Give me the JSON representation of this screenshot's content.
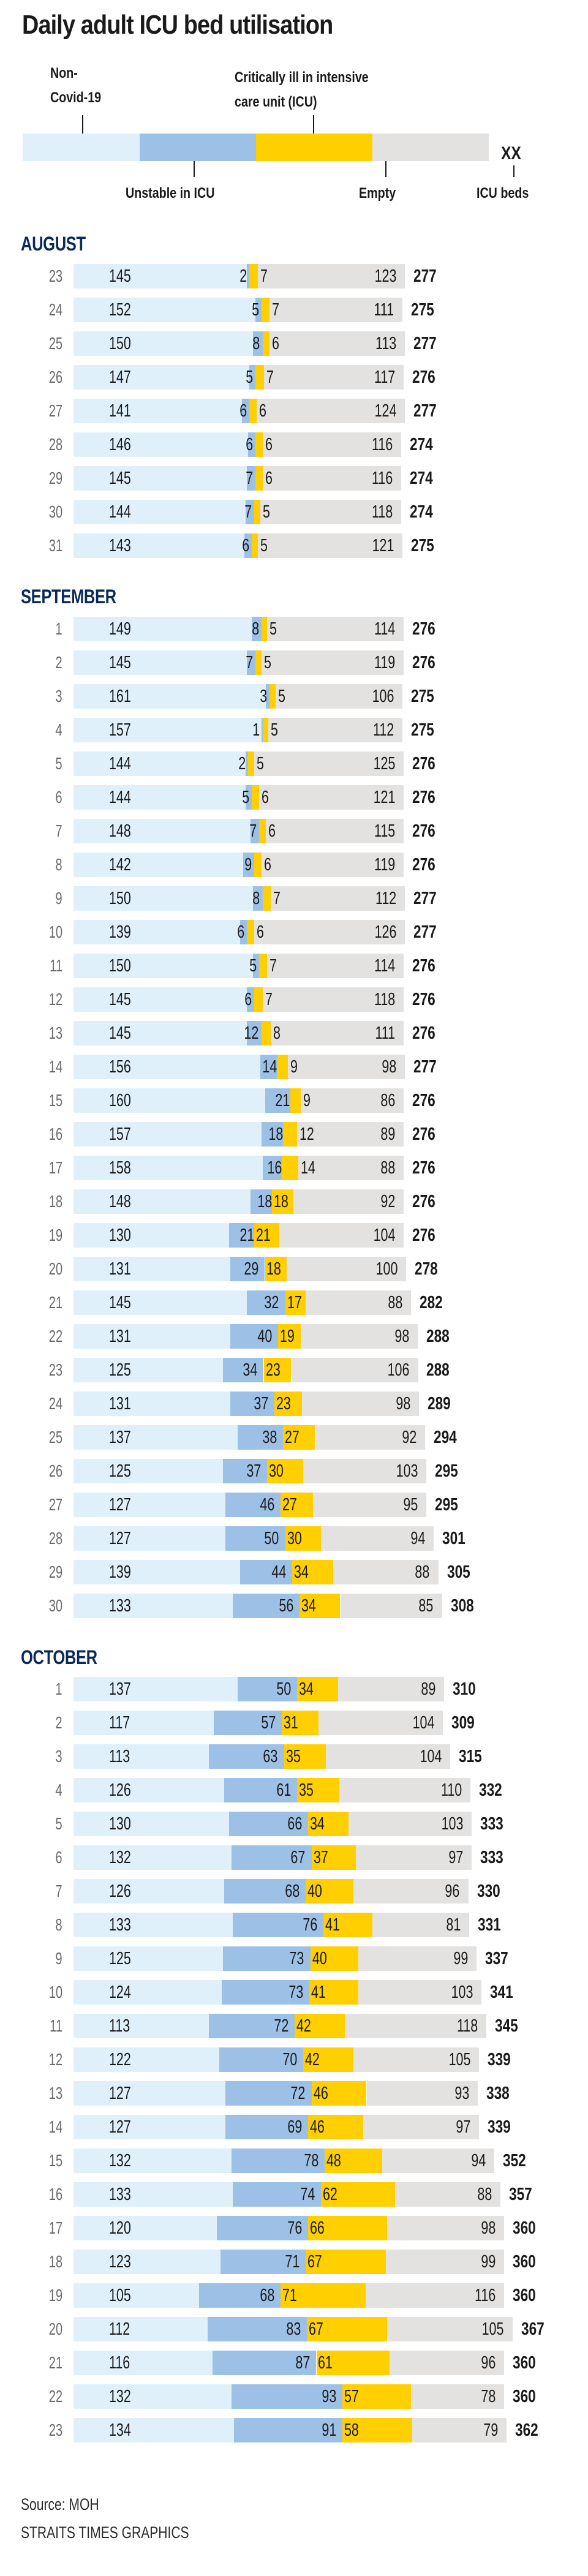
{
  "chart_data": {
    "type": "bar",
    "orientation": "horizontal-stacked",
    "title": "Daily adult ICU bed utilisation",
    "legend": {
      "series": [
        {
          "key": "non_covid",
          "label": "Non-Covid-19",
          "color": "#dff0fb"
        },
        {
          "key": "unstable",
          "label": "Unstable in ICU",
          "color": "#9dc1e6"
        },
        {
          "key": "critical",
          "label": "Critically ill in intensive care unit (ICU)",
          "color": "#ffcf00"
        },
        {
          "key": "empty",
          "label": "Empty",
          "color": "#e3e2e0"
        }
      ],
      "total_placeholder": "XX",
      "total_label": "ICU beds",
      "non_covid_lines": [
        "Non-",
        "Covid-19"
      ],
      "critical_lines": [
        "Critically ill in intensive",
        "care unit (ICU)"
      ]
    },
    "months": [
      {
        "name": "AUGUST",
        "rows": [
          {
            "day": "23",
            "non_covid": 145,
            "unstable": 2,
            "critical": 7,
            "empty": 123,
            "total": 277
          },
          {
            "day": "24",
            "non_covid": 152,
            "unstable": 5,
            "critical": 7,
            "empty": 111,
            "total": 275
          },
          {
            "day": "25",
            "non_covid": 150,
            "unstable": 8,
            "critical": 6,
            "empty": 113,
            "total": 277
          },
          {
            "day": "26",
            "non_covid": 147,
            "unstable": 5,
            "critical": 7,
            "empty": 117,
            "total": 276
          },
          {
            "day": "27",
            "non_covid": 141,
            "unstable": 6,
            "critical": 6,
            "empty": 124,
            "total": 277
          },
          {
            "day": "28",
            "non_covid": 146,
            "unstable": 6,
            "critical": 6,
            "empty": 116,
            "total": 274
          },
          {
            "day": "29",
            "non_covid": 145,
            "unstable": 7,
            "critical": 6,
            "empty": 116,
            "total": 274
          },
          {
            "day": "30",
            "non_covid": 144,
            "unstable": 7,
            "critical": 5,
            "empty": 118,
            "total": 274
          },
          {
            "day": "31",
            "non_covid": 143,
            "unstable": 6,
            "critical": 5,
            "empty": 121,
            "total": 275
          }
        ]
      },
      {
        "name": "SEPTEMBER",
        "rows": [
          {
            "day": "1",
            "non_covid": 149,
            "unstable": 8,
            "critical": 5,
            "empty": 114,
            "total": 276
          },
          {
            "day": "2",
            "non_covid": 145,
            "unstable": 7,
            "critical": 5,
            "empty": 119,
            "total": 276
          },
          {
            "day": "3",
            "non_covid": 161,
            "unstable": 3,
            "critical": 5,
            "empty": 106,
            "total": 275
          },
          {
            "day": "4",
            "non_covid": 157,
            "unstable": 1,
            "critical": 5,
            "empty": 112,
            "total": 275
          },
          {
            "day": "5",
            "non_covid": 144,
            "unstable": 2,
            "critical": 5,
            "empty": 125,
            "total": 276
          },
          {
            "day": "6",
            "non_covid": 144,
            "unstable": 5,
            "critical": 6,
            "empty": 121,
            "total": 276
          },
          {
            "day": "7",
            "non_covid": 148,
            "unstable": 7,
            "critical": 6,
            "empty": 115,
            "total": 276
          },
          {
            "day": "8",
            "non_covid": 142,
            "unstable": 9,
            "critical": 6,
            "empty": 119,
            "total": 276
          },
          {
            "day": "9",
            "non_covid": 150,
            "unstable": 8,
            "critical": 7,
            "empty": 112,
            "total": 277
          },
          {
            "day": "10",
            "non_covid": 139,
            "unstable": 6,
            "critical": 6,
            "empty": 126,
            "total": 277
          },
          {
            "day": "11",
            "non_covid": 150,
            "unstable": 5,
            "critical": 7,
            "empty": 114,
            "total": 276
          },
          {
            "day": "12",
            "non_covid": 145,
            "unstable": 6,
            "critical": 7,
            "empty": 118,
            "total": 276
          },
          {
            "day": "13",
            "non_covid": 145,
            "unstable": 12,
            "critical": 8,
            "empty": 111,
            "total": 276
          },
          {
            "day": "14",
            "non_covid": 156,
            "unstable": 14,
            "critical": 9,
            "empty": 98,
            "total": 277
          },
          {
            "day": "15",
            "non_covid": 160,
            "unstable": 21,
            "critical": 9,
            "empty": 86,
            "total": 276
          },
          {
            "day": "16",
            "non_covid": 157,
            "unstable": 18,
            "critical": 12,
            "empty": 89,
            "total": 276
          },
          {
            "day": "17",
            "non_covid": 158,
            "unstable": 16,
            "critical": 14,
            "empty": 88,
            "total": 276
          },
          {
            "day": "18",
            "non_covid": 148,
            "unstable": 18,
            "critical": 18,
            "empty": 92,
            "total": 276
          },
          {
            "day": "19",
            "non_covid": 130,
            "unstable": 21,
            "critical": 21,
            "empty": 104,
            "total": 276
          },
          {
            "day": "20",
            "non_covid": 131,
            "unstable": 29,
            "critical": 18,
            "empty": 100,
            "total": 278
          },
          {
            "day": "21",
            "non_covid": 145,
            "unstable": 32,
            "critical": 17,
            "empty": 88,
            "total": 282
          },
          {
            "day": "22",
            "non_covid": 131,
            "unstable": 40,
            "critical": 19,
            "empty": 98,
            "total": 288
          },
          {
            "day": "23",
            "non_covid": 125,
            "unstable": 34,
            "critical": 23,
            "empty": 106,
            "total": 288
          },
          {
            "day": "24",
            "non_covid": 131,
            "unstable": 37,
            "critical": 23,
            "empty": 98,
            "total": 289
          },
          {
            "day": "25",
            "non_covid": 137,
            "unstable": 38,
            "critical": 27,
            "empty": 92,
            "total": 294
          },
          {
            "day": "26",
            "non_covid": 125,
            "unstable": 37,
            "critical": 30,
            "empty": 103,
            "total": 295
          },
          {
            "day": "27",
            "non_covid": 127,
            "unstable": 46,
            "critical": 27,
            "empty": 95,
            "total": 295
          },
          {
            "day": "28",
            "non_covid": 127,
            "unstable": 50,
            "critical": 30,
            "empty": 94,
            "total": 301
          },
          {
            "day": "29",
            "non_covid": 139,
            "unstable": 44,
            "critical": 34,
            "empty": 88,
            "total": 305
          },
          {
            "day": "30",
            "non_covid": 133,
            "unstable": 56,
            "critical": 34,
            "empty": 85,
            "total": 308
          }
        ]
      },
      {
        "name": "OCTOBER",
        "rows": [
          {
            "day": "1",
            "non_covid": 137,
            "unstable": 50,
            "critical": 34,
            "empty": 89,
            "total": 310
          },
          {
            "day": "2",
            "non_covid": 117,
            "unstable": 57,
            "critical": 31,
            "empty": 104,
            "total": 309
          },
          {
            "day": "3",
            "non_covid": 113,
            "unstable": 63,
            "critical": 35,
            "empty": 104,
            "total": 315
          },
          {
            "day": "4",
            "non_covid": 126,
            "unstable": 61,
            "critical": 35,
            "empty": 110,
            "total": 332
          },
          {
            "day": "5",
            "non_covid": 130,
            "unstable": 66,
            "critical": 34,
            "empty": 103,
            "total": 333
          },
          {
            "day": "6",
            "non_covid": 132,
            "unstable": 67,
            "critical": 37,
            "empty": 97,
            "total": 333
          },
          {
            "day": "7",
            "non_covid": 126,
            "unstable": 68,
            "critical": 40,
            "empty": 96,
            "total": 330
          },
          {
            "day": "8",
            "non_covid": 133,
            "unstable": 76,
            "critical": 41,
            "empty": 81,
            "total": 331
          },
          {
            "day": "9",
            "non_covid": 125,
            "unstable": 73,
            "critical": 40,
            "empty": 99,
            "total": 337
          },
          {
            "day": "10",
            "non_covid": 124,
            "unstable": 73,
            "critical": 41,
            "empty": 103,
            "total": 341
          },
          {
            "day": "11",
            "non_covid": 113,
            "unstable": 72,
            "critical": 42,
            "empty": 118,
            "total": 345
          },
          {
            "day": "12",
            "non_covid": 122,
            "unstable": 70,
            "critical": 42,
            "empty": 105,
            "total": 339
          },
          {
            "day": "13",
            "non_covid": 127,
            "unstable": 72,
            "critical": 46,
            "empty": 93,
            "total": 338
          },
          {
            "day": "14",
            "non_covid": 127,
            "unstable": 69,
            "critical": 46,
            "empty": 97,
            "total": 339
          },
          {
            "day": "15",
            "non_covid": 132,
            "unstable": 78,
            "critical": 48,
            "empty": 94,
            "total": 352
          },
          {
            "day": "16",
            "non_covid": 133,
            "unstable": 74,
            "critical": 62,
            "empty": 88,
            "total": 357
          },
          {
            "day": "17",
            "non_covid": 120,
            "unstable": 76,
            "critical": 66,
            "empty": 98,
            "total": 360
          },
          {
            "day": "18",
            "non_covid": 123,
            "unstable": 71,
            "critical": 67,
            "empty": 99,
            "total": 360
          },
          {
            "day": "19",
            "non_covid": 105,
            "unstable": 68,
            "critical": 71,
            "empty": 116,
            "total": 360
          },
          {
            "day": "20",
            "non_covid": 112,
            "unstable": 83,
            "critical": 67,
            "empty": 105,
            "total": 367
          },
          {
            "day": "21",
            "non_covid": 116,
            "unstable": 87,
            "critical": 61,
            "empty": 96,
            "total": 360
          },
          {
            "day": "22",
            "non_covid": 132,
            "unstable": 93,
            "critical": 57,
            "empty": 78,
            "total": 360
          },
          {
            "day": "23",
            "non_covid": 134,
            "unstable": 91,
            "critical": 58,
            "empty": 79,
            "total": 362
          }
        ]
      }
    ],
    "month_color": "#0b2a5b"
  },
  "footer": {
    "source": "Source: MOH",
    "credit": "STRAITS TIMES GRAPHICS"
  }
}
